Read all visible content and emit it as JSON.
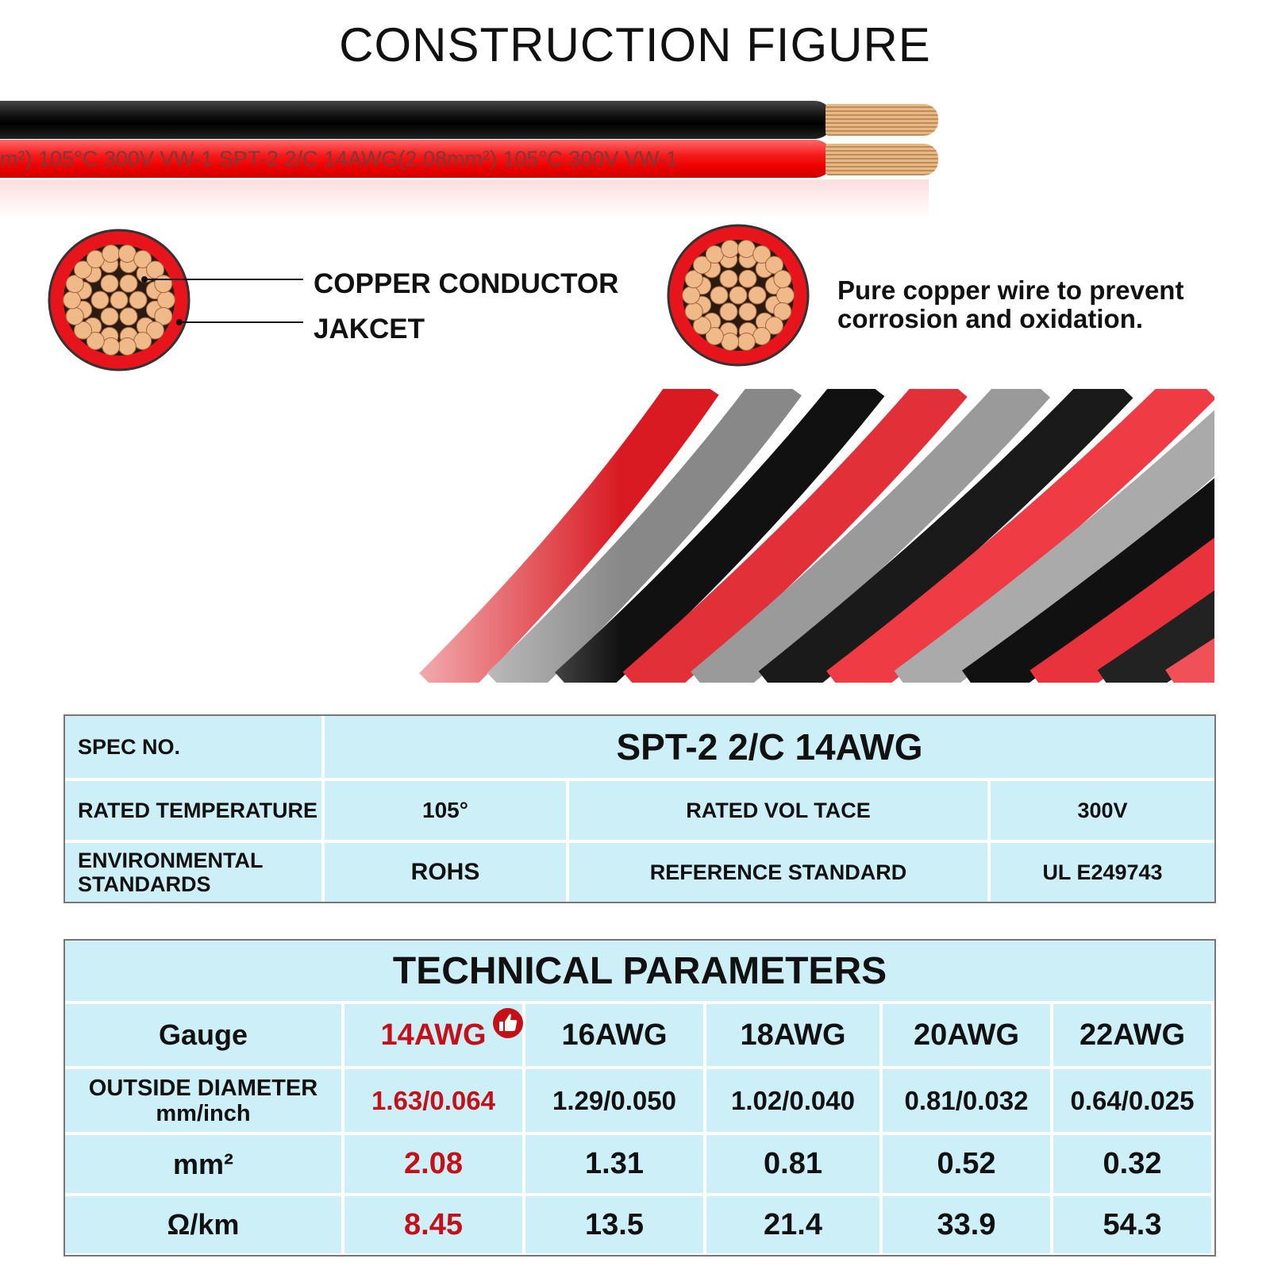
{
  "title": "CONSTRUCTION FIGURE",
  "cable": {
    "print": "m²)  105°C  300V  VW-1  SPT-2 2/C  14AWG(2.08mm²)  105°C  300V  VW-1"
  },
  "labels": {
    "conductor": "COPPER CONDUCTOR",
    "jacket": "JAKCET",
    "description": "Pure copper wire to prevent corrosion and oxidation."
  },
  "colors": {
    "table_bg": "#cdeff8",
    "highlight": "#c41018",
    "jacket_red": "#e8141c",
    "copper": "#f0b989"
  },
  "spec_table": {
    "spec_label": "SPEC NO.",
    "spec_value": "SPT-2 2/C 14AWG",
    "temp_label": "RATED TEMPERATURE",
    "temp_value": "105°",
    "volt_label": "RATED VOL TACE",
    "volt_value": "300V",
    "env_label": "ENVIRONMENTAL STANDARDS",
    "env_value": "ROHS",
    "ref_label": "REFERENCE STANDARD",
    "ref_value": "UL E249743"
  },
  "tech_table": {
    "title": "TECHNICAL PARAMETERS",
    "highlight_icon": "thumbs-up-icon",
    "rows": [
      {
        "label": "Gauge",
        "sub": "",
        "values": [
          "14AWG",
          "16AWG",
          "18AWG",
          "20AWG",
          "22AWG"
        ]
      },
      {
        "label": "OUTSIDE DIAMETER",
        "sub": "mm/inch",
        "values": [
          "1.63/0.064",
          "1.29/0.050",
          "1.02/0.040",
          "0.81/0.032",
          "0.64/0.025"
        ]
      },
      {
        "label": "mm²",
        "sub": "",
        "values": [
          "2.08",
          "1.31",
          "0.81",
          "0.52",
          "0.32"
        ]
      },
      {
        "label": "Ω/km",
        "sub": "",
        "values": [
          "8.45",
          "13.5",
          "21.4",
          "33.9",
          "54.3"
        ]
      }
    ]
  }
}
